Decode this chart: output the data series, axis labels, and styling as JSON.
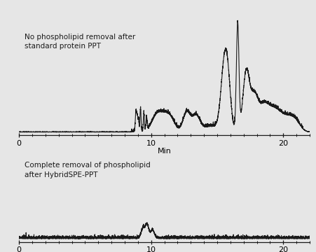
{
  "background_color": "#e6e6e6",
  "line_color": "#1a1a1a",
  "xmin": 0,
  "xmax": 22,
  "xticks": [
    0,
    10,
    20
  ],
  "xlabel": "Min",
  "label1": "No phospholipid removal after\nstandard protein PPT",
  "label2": "Complete removal of phospholipid\nafter HybridSPE-PPT",
  "label_fontsize": 7.5,
  "xlabel_fontsize": 8,
  "tick_fontsize": 8,
  "line_width": 0.8
}
